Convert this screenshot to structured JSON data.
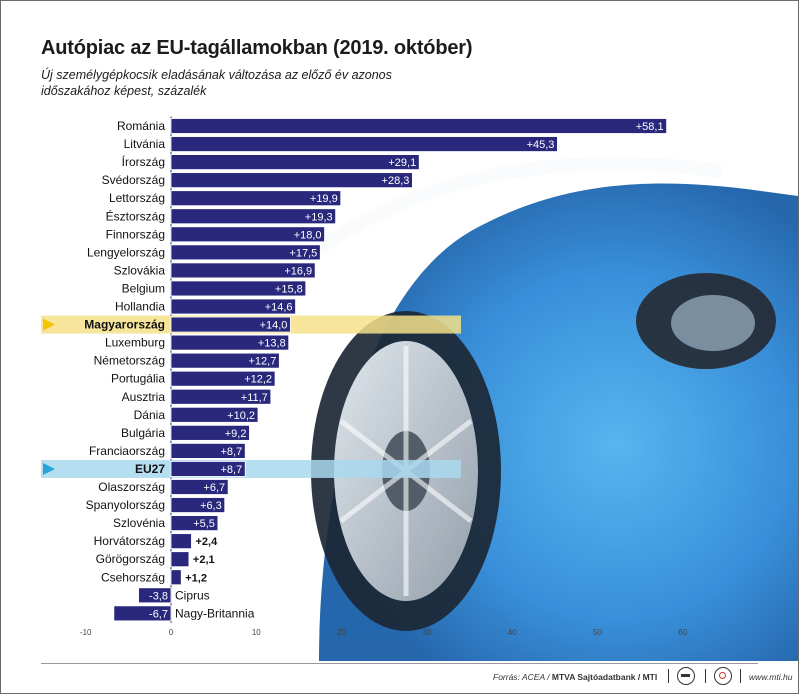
{
  "title": "Autópiac az EU-tagállamokban (2019. október)",
  "subtitle": "Új személygépkocsik eladásának változása az előző év azonos időszakához képest, százalék",
  "footer": {
    "source_prefix": "Forrás: ACEA / ",
    "source_bold": "MTVA Sajtóadatbank / MTI",
    "site": "www.mti.hu"
  },
  "colors": {
    "bar": "#29287c",
    "bar_border": "#ffffff",
    "highlight_hu": "#f4e08a",
    "highlight_eu": "#a9d8ee",
    "arrow_hu": "#f2c400",
    "arrow_eu": "#29a3dc"
  },
  "chart_data": {
    "type": "bar",
    "orientation": "horizontal",
    "xlim": [
      -10,
      60
    ],
    "x_ticks": [
      -10,
      0,
      10,
      20,
      30,
      40,
      50,
      60
    ],
    "grid": false,
    "categories": [
      "Románia",
      "Litvánia",
      "Írország",
      "Svédország",
      "Lettország",
      "Észtország",
      "Finnország",
      "Lengyelország",
      "Szlovákia",
      "Belgium",
      "Hollandia",
      "Magyarország",
      "Luxemburg",
      "Németország",
      "Portugália",
      "Ausztria",
      "Dánia",
      "Bulgária",
      "Franciaország",
      "EU27",
      "Olaszország",
      "Spanyolország",
      "Szlovénia",
      "Horvátország",
      "Görögország",
      "Csehország",
      "Ciprus",
      "Nagy-Britannia"
    ],
    "values": [
      58.1,
      45.3,
      29.1,
      28.3,
      19.9,
      19.3,
      18.0,
      17.5,
      16.9,
      15.8,
      14.6,
      14.0,
      13.8,
      12.7,
      12.2,
      11.7,
      10.2,
      9.2,
      8.7,
      8.7,
      6.7,
      6.3,
      5.5,
      2.4,
      2.1,
      1.2,
      -3.8,
      -6.7
    ],
    "value_labels": [
      "+58,1",
      "+45,3",
      "+29,1",
      "+28,3",
      "+19,9",
      "+19,3",
      "+18,0",
      "+17,5",
      "+16,9",
      "+15,8",
      "+14,6",
      "+14,0",
      "+13,8",
      "+12,7",
      "+12,2",
      "+11,7",
      "+10,2",
      "+9,2",
      "+8,7",
      "+8,7",
      "+6,7",
      "+6,3",
      "+5,5",
      "+2,4",
      "+2,1",
      "+1,2",
      "-3,8",
      "-6,7"
    ],
    "highlighted": [
      "Magyarország",
      "EU27"
    ]
  }
}
